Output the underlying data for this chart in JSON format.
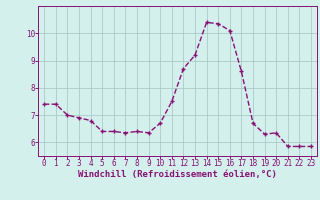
{
  "x": [
    0,
    1,
    2,
    3,
    4,
    5,
    6,
    7,
    8,
    9,
    10,
    11,
    12,
    13,
    14,
    15,
    16,
    17,
    18,
    19,
    20,
    21,
    22,
    23
  ],
  "y": [
    7.4,
    7.4,
    7.0,
    6.9,
    6.8,
    6.4,
    6.4,
    6.35,
    6.4,
    6.35,
    6.7,
    7.5,
    8.7,
    9.2,
    10.4,
    10.35,
    10.1,
    8.6,
    6.7,
    6.3,
    6.35,
    5.85,
    5.85,
    5.85
  ],
  "line_color": "#881177",
  "marker": "+",
  "marker_size": 3,
  "marker_edge_width": 1.0,
  "bg_color": "#d4f0ec",
  "grid_color": "#aaccc8",
  "xlabel": "Windchill (Refroidissement éolien,°C)",
  "xlim": [
    -0.5,
    23.5
  ],
  "ylim": [
    5.5,
    11.0
  ],
  "yticks": [
    6,
    7,
    8,
    9,
    10
  ],
  "xticks": [
    0,
    1,
    2,
    3,
    4,
    5,
    6,
    7,
    8,
    9,
    10,
    11,
    12,
    13,
    14,
    15,
    16,
    17,
    18,
    19,
    20,
    21,
    22,
    23
  ],
  "xlabel_fontsize": 6.5,
  "tick_fontsize": 5.5,
  "line_width": 1.0,
  "label_color": "#881177",
  "spine_color": "#881177"
}
